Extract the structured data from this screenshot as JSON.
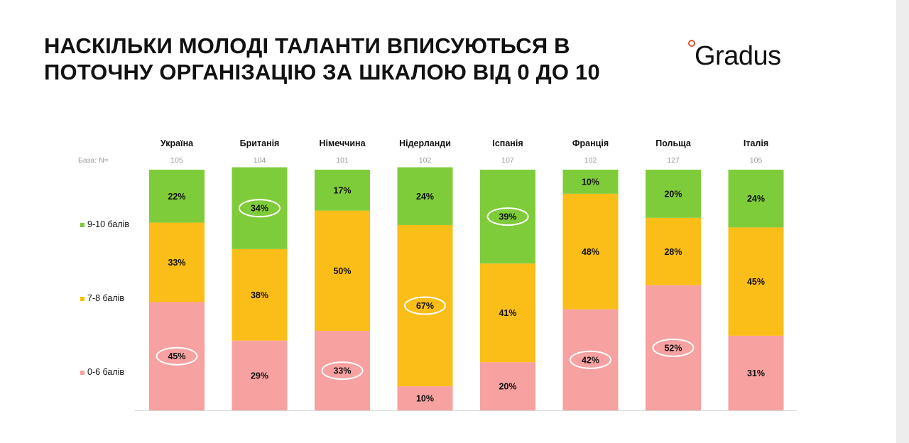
{
  "title": "НАСКІЛЬКИ МОЛОДІ ТАЛАНТИ ВПИСУЮТЬСЯ В ПОТОЧНУ ОРГАНІЗАЦІЮ ЗА ШКАЛОЮ ВІД 0 ДО 10",
  "logo": {
    "text": "Gradus",
    "accent_color": "#e84f2a"
  },
  "chart_data": {
    "type": "bar",
    "stacked": true,
    "title": "НАСКІЛЬКИ МОЛОДІ ТАЛАНТИ ВПИСУЮТЬСЯ В ПОТОЧНУ ОРГАНІЗАЦІЮ ЗА ШКАЛОЮ ВІД 0 ДО 10",
    "base_label": "База: N=",
    "categories": [
      "Україна",
      "Британія",
      "Німеччина",
      "Нідерланди",
      "Іспанія",
      "Франція",
      "Польща",
      "Італія"
    ],
    "base_n": [
      "105",
      "104",
      "101",
      "102",
      "107",
      "102",
      "127",
      "105"
    ],
    "series": [
      {
        "name": "0-6 балів",
        "color": "#f7a1a1",
        "values": [
          45,
          29,
          33,
          10,
          20,
          42,
          52,
          31
        ],
        "labels": [
          "45%",
          "29%",
          "33%",
          "10%",
          "20%",
          "42%",
          "52%",
          "31%"
        ]
      },
      {
        "name": "7-8 балів",
        "color": "#fbbd17",
        "values": [
          33,
          38,
          50,
          67,
          41,
          48,
          28,
          45
        ],
        "labels": [
          "33%",
          "38%",
          "50%",
          "67%",
          "41%",
          "48%",
          "28%",
          "45%"
        ]
      },
      {
        "name": "9-10 балів",
        "color": "#7fcc3a",
        "values": [
          22,
          34,
          17,
          24,
          39,
          10,
          20,
          24
        ],
        "labels": [
          "22%",
          "34%",
          "17%",
          "24%",
          "39%",
          "10%",
          "20%",
          "24%"
        ]
      }
    ],
    "highlighted": [
      {
        "category": "Україна",
        "series": "0-6 балів"
      },
      {
        "category": "Британія",
        "series": "9-10 балів"
      },
      {
        "category": "Німеччина",
        "series": "0-6 балів"
      },
      {
        "category": "Нідерланди",
        "series": "7-8 балів"
      },
      {
        "category": "Іспанія",
        "series": "9-10 балів"
      },
      {
        "category": "Франція",
        "series": "0-6 балів"
      },
      {
        "category": "Польща",
        "series": "0-6 балів"
      }
    ],
    "ylim": [
      0,
      100
    ],
    "legend": {
      "position": "left",
      "order": [
        "9-10 балів",
        "7-8 балів",
        "0-6 балів"
      ]
    },
    "grid": false
  }
}
